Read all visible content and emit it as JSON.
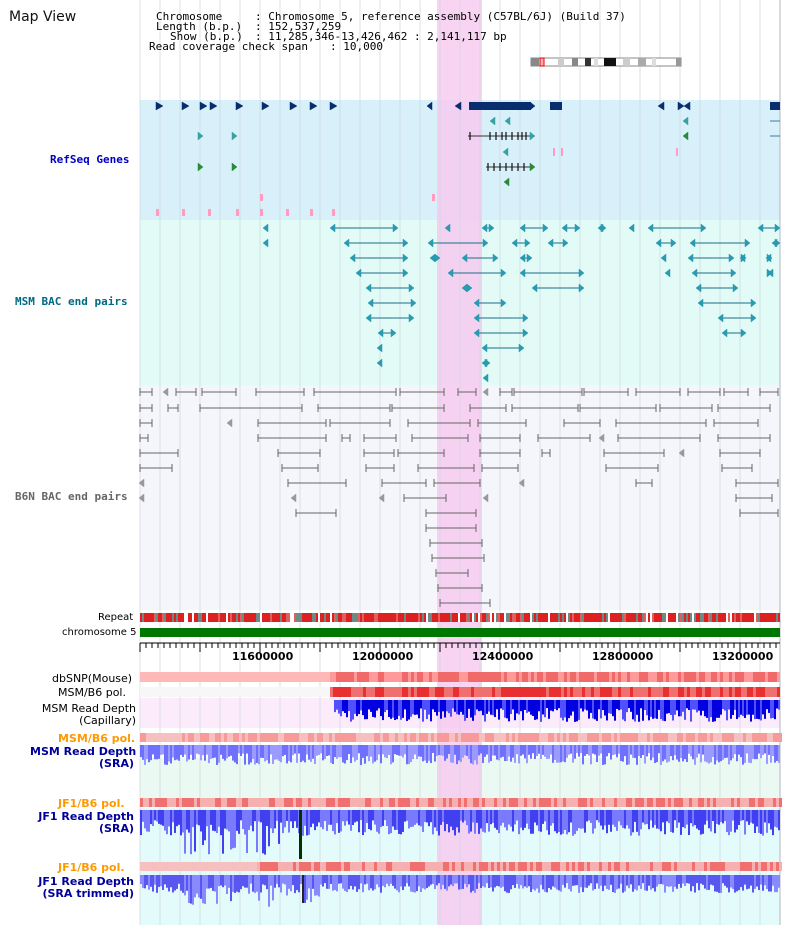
{
  "title": "Map View",
  "header": {
    "chromosome_key": "Chromosome",
    "chromosome_val": ": Chromosome 5, reference assembly (C57BL/6J) (Build 37)",
    "length_key": "Length (b.p.)",
    "length_val": ": 152,537,259",
    "show_key": "Show (b.p.)",
    "show_val": ": 11,285,346-13,426,462 : 2,141,117 bp",
    "coverage_key": "Read coverage check span",
    "coverage_val": ": 10,000"
  },
  "tracks": {
    "refseq": "RefSeq Genes",
    "msm_bac": "MSM BAC end pairs",
    "b6n_bac": "B6N BAC end pairs",
    "repeat": "Repeat",
    "chromosome": "chromosome 5",
    "dbsnp": "dbSNP(Mouse)",
    "msm_b6_pol_1": "MSM/B6 pol.",
    "msm_depth_cap_1": "MSM Read Depth",
    "msm_depth_cap_2": "(Capillary)",
    "msm_b6_pol_2": "MSM/B6 pol.",
    "msm_depth_sra_1": "MSM Read Depth",
    "msm_depth_sra_2": "(SRA)",
    "jf1_b6_pol_1": "JF1/B6 pol.",
    "jf1_depth_sra_1": "JF1 Read Depth",
    "jf1_depth_sra_2": "(SRA)",
    "jf1_b6_pol_2": "JF1/B6 pol.",
    "jf1_depth_trim_1": "JF1 Read Depth",
    "jf1_depth_trim_2": "(SRA trimmed)"
  },
  "axis_ticks": [
    "11600000",
    "12000000",
    "12400000",
    "12800000",
    "13200000"
  ],
  "colors": {
    "refseq_bg": "#d8f0fa",
    "msm_bg": "#e2fbf7",
    "b6n_bg": "#f5f6fb",
    "highlight": "#f7c8ef",
    "refseq_label": "#0000c0",
    "msm_label": "#006a82",
    "b6n_label": "#666666",
    "pol_label": "#ff9900",
    "depth_label": "#000099",
    "chrom_bar": "#007700"
  }
}
